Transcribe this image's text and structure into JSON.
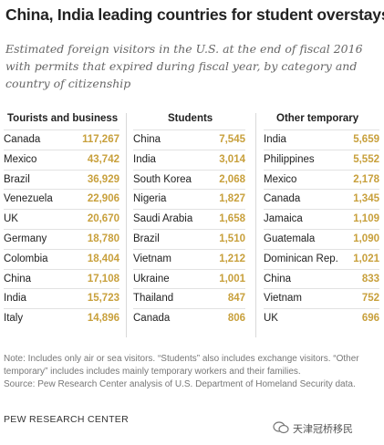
{
  "title": "China, India leading countries for student overstays",
  "subtitle": "Estimated foreign visitors in the U.S. at the end of fiscal 2016 with permits that expired during fiscal year, by category and country of citizenship",
  "note": "Note: Includes only air or sea visitors. “Students” also includes exchange visitors. “Other temporary” includes includes mainly temporary workers and their families.",
  "source_line": "Source: Pew Research Center analysis of U.S. Department of Homeland Security data.",
  "organization": "PEW RESEARCH CENTER",
  "watermark_text": "天津冠桥移民",
  "colors": {
    "value": "#c8a03c",
    "text": "#222222",
    "rule": "#e2e2e2"
  },
  "chart_data": {
    "type": "table",
    "tables": [
      {
        "header": "Tourists and business",
        "rows": [
          {
            "country": "Canada",
            "value": "117,267"
          },
          {
            "country": "Mexico",
            "value": "43,742"
          },
          {
            "country": "Brazil",
            "value": "36,929"
          },
          {
            "country": "Venezuela",
            "value": "22,906"
          },
          {
            "country": "UK",
            "value": "20,670"
          },
          {
            "country": "Germany",
            "value": "18,780"
          },
          {
            "country": "Colombia",
            "value": "18,404"
          },
          {
            "country": "China",
            "value": "17,108"
          },
          {
            "country": "India",
            "value": "15,723"
          },
          {
            "country": "Italy",
            "value": "14,896"
          }
        ]
      },
      {
        "header": "Students",
        "rows": [
          {
            "country": "China",
            "value": "7,545"
          },
          {
            "country": "India",
            "value": "3,014"
          },
          {
            "country": "South Korea",
            "value": "2,068"
          },
          {
            "country": "Nigeria",
            "value": "1,827"
          },
          {
            "country": "Saudi Arabia",
            "value": "1,658"
          },
          {
            "country": "Brazil",
            "value": "1,510"
          },
          {
            "country": "Vietnam",
            "value": "1,212"
          },
          {
            "country": "Ukraine",
            "value": "1,001"
          },
          {
            "country": "Thailand",
            "value": "847"
          },
          {
            "country": "Canada",
            "value": "806"
          }
        ]
      },
      {
        "header": "Other temporary",
        "rows": [
          {
            "country": "India",
            "value": "5,659"
          },
          {
            "country": "Philippines",
            "value": "5,552"
          },
          {
            "country": "Mexico",
            "value": "2,178"
          },
          {
            "country": "Canada",
            "value": "1,345"
          },
          {
            "country": "Jamaica",
            "value": "1,109"
          },
          {
            "country": "Guatemala",
            "value": "1,090"
          },
          {
            "country": "Dominican Rep.",
            "value": "1,021"
          },
          {
            "country": "China",
            "value": "833"
          },
          {
            "country": "Vietnam",
            "value": "752"
          },
          {
            "country": "UK",
            "value": "696"
          }
        ]
      }
    ]
  }
}
